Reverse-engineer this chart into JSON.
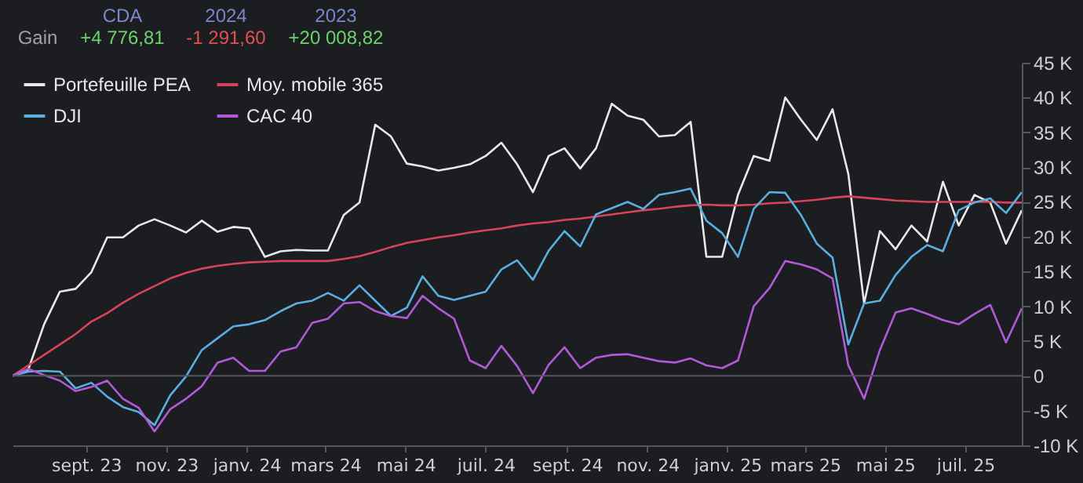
{
  "chart_data": {
    "type": "line",
    "annotations": [
      "Gain",
      "CDA",
      "+4 776,81",
      "2024",
      "-1 291,60",
      "2023",
      "+20 008,82"
    ],
    "x": [
      "2023-07-07",
      "2023-07-19",
      "2023-07-31",
      "2023-08-12",
      "2023-08-24",
      "2023-09-05",
      "2023-09-17",
      "2023-09-29",
      "2023-10-11",
      "2023-10-23",
      "2023-11-04",
      "2023-11-16",
      "2023-11-28",
      "2023-12-10",
      "2023-12-22",
      "2024-01-03",
      "2024-01-15",
      "2024-01-27",
      "2024-02-08",
      "2024-02-20",
      "2024-03-03",
      "2024-03-15",
      "2024-03-27",
      "2024-04-08",
      "2024-04-20",
      "2024-05-02",
      "2024-05-14",
      "2024-05-26",
      "2024-06-07",
      "2024-06-19",
      "2024-07-01",
      "2024-07-13",
      "2024-07-25",
      "2024-08-06",
      "2024-08-18",
      "2024-08-30",
      "2024-09-11",
      "2024-09-23",
      "2024-10-05",
      "2024-10-17",
      "2024-10-29",
      "2024-11-10",
      "2024-11-22",
      "2024-12-04",
      "2024-12-16",
      "2024-12-28",
      "2025-01-09",
      "2025-01-21",
      "2025-02-02",
      "2025-02-14",
      "2025-02-26",
      "2025-03-10",
      "2025-03-22",
      "2025-04-03",
      "2025-04-15",
      "2025-04-27",
      "2025-05-09",
      "2025-05-21",
      "2025-06-02",
      "2025-06-14",
      "2025-06-26",
      "2025-07-08",
      "2025-07-20",
      "2025-08-01",
      "2025-08-13"
    ],
    "series": [
      {
        "name": "Portefeuille PEA",
        "color": "#e8e8e8",
        "values": [
          0,
          0.9,
          7.4,
          12.1,
          12.5,
          14.9,
          19.9,
          19.9,
          21.6,
          22.5,
          21.6,
          20.6,
          22.3,
          20.7,
          21.4,
          21.2,
          17.1,
          17.9,
          18.1,
          18.0,
          18.0,
          23.1,
          24.9,
          36.1,
          34.4,
          30.5,
          30.1,
          29.5,
          29.9,
          30.4,
          31.6,
          33.5,
          30.4,
          26.4,
          31.6,
          32.7,
          29.8,
          32.7,
          39.1,
          37.4,
          36.8,
          34.4,
          34.6,
          36.5,
          17.1,
          17.1,
          26.0,
          31.6,
          30.9,
          40.0,
          36.8,
          33.9,
          38.3,
          29.0,
          10.4,
          20.8,
          18.2,
          21.6,
          19.3,
          27.9,
          21.6,
          26.0,
          24.9,
          19.0,
          23.8
        ]
      },
      {
        "name": "Moy. mobile 365",
        "color": "#d9435a",
        "values": [
          0,
          1.5,
          3.0,
          4.5,
          6.0,
          7.8,
          9.0,
          10.5,
          11.8,
          12.9,
          14.0,
          14.8,
          15.4,
          15.8,
          16.1,
          16.3,
          16.4,
          16.5,
          16.5,
          16.5,
          16.5,
          16.8,
          17.2,
          17.8,
          18.5,
          19.1,
          19.5,
          19.9,
          20.2,
          20.6,
          20.9,
          21.2,
          21.6,
          21.9,
          22.1,
          22.4,
          22.6,
          22.9,
          23.2,
          23.5,
          23.8,
          24.0,
          24.3,
          24.5,
          24.6,
          24.5,
          24.5,
          24.6,
          24.8,
          24.9,
          25.1,
          25.3,
          25.6,
          25.8,
          25.6,
          25.4,
          25.2,
          25.1,
          25.0,
          25.0,
          25.0,
          25.0,
          25.0,
          24.9,
          24.9
        ]
      },
      {
        "name": "DJI",
        "color": "#5aaee0",
        "values": [
          0,
          0.6,
          0.7,
          0.6,
          -1.8,
          -1.0,
          -3.0,
          -4.5,
          -5.2,
          -7.1,
          -2.8,
          -0.1,
          3.7,
          5.4,
          7.1,
          7.4,
          8.0,
          9.3,
          10.4,
          10.8,
          11.9,
          10.8,
          13.0,
          10.8,
          8.6,
          9.8,
          14.3,
          11.5,
          10.9,
          11.5,
          12.1,
          15.3,
          16.6,
          13.8,
          18.0,
          20.8,
          18.6,
          23.2,
          24.1,
          25.0,
          24.0,
          26.0,
          26.4,
          26.9,
          22.3,
          20.5,
          17.1,
          24.0,
          26.4,
          26.3,
          23.1,
          19.0,
          17.0,
          4.5,
          10.4,
          10.8,
          14.5,
          17.1,
          18.8,
          17.9,
          23.8,
          24.9,
          25.5,
          23.4,
          26.4
        ]
      },
      {
        "name": "CAC 40",
        "color": "#b05ad8",
        "values": [
          0,
          1.0,
          0.1,
          -0.7,
          -2.2,
          -1.6,
          -0.7,
          -3.3,
          -4.6,
          -8.0,
          -4.8,
          -3.3,
          -1.5,
          1.9,
          2.6,
          0.7,
          0.7,
          3.5,
          4.1,
          7.6,
          8.2,
          10.4,
          10.6,
          9.3,
          8.6,
          8.3,
          11.5,
          9.7,
          8.2,
          2.2,
          1.1,
          4.3,
          1.4,
          -2.5,
          1.6,
          4.1,
          1.1,
          2.6,
          3.0,
          3.1,
          2.6,
          2.1,
          1.9,
          2.5,
          1.5,
          1.1,
          2.2,
          10.0,
          12.6,
          16.5,
          16.0,
          15.3,
          14.0,
          1.5,
          -3.3,
          3.7,
          9.1,
          9.7,
          8.9,
          8.0,
          7.4,
          8.9,
          10.2,
          4.8,
          9.7
        ]
      }
    ],
    "xlim": [
      "2023-07-07",
      "2025-08-13"
    ],
    "xticks": [
      {
        "value": "2023-09-01",
        "label": "sept. 23"
      },
      {
        "value": "2023-11-01",
        "label": "nov. 23"
      },
      {
        "value": "2024-01-01",
        "label": "janv. 24"
      },
      {
        "value": "2024-03-01",
        "label": "mars 24"
      },
      {
        "value": "2024-05-01",
        "label": "mai 24"
      },
      {
        "value": "2024-07-01",
        "label": "juil. 24"
      },
      {
        "value": "2024-09-01",
        "label": "sept. 24"
      },
      {
        "value": "2024-11-01",
        "label": "nov. 24"
      },
      {
        "value": "2025-01-01",
        "label": "janv. 25"
      },
      {
        "value": "2025-03-01",
        "label": "mars 25"
      },
      {
        "value": "2025-05-01",
        "label": "mai 25"
      },
      {
        "value": "2025-07-01",
        "label": "juil. 25"
      }
    ],
    "ylim": [
      -10,
      45
    ],
    "yticks": [
      {
        "value": -10,
        "label": "-10 K"
      },
      {
        "value": -5,
        "label": "-5 K"
      },
      0,
      {
        "value": 5,
        "label": "5 K"
      },
      {
        "value": 10,
        "label": "10 K"
      },
      {
        "value": 15,
        "label": "15 K"
      },
      {
        "value": 20,
        "label": "20 K"
      },
      {
        "value": 25,
        "label": "25 K"
      },
      {
        "value": 30,
        "label": "30 K"
      },
      {
        "value": 35,
        "label": "35 K"
      },
      {
        "value": 40,
        "label": "40 K"
      },
      {
        "value": 45,
        "label": "45 K"
      }
    ],
    "ref_lines": [
      {
        "axis": "y",
        "value": 0,
        "color": "#55565b"
      }
    ],
    "legend": "top left",
    "grid": false,
    "line_style": "solid",
    "marker": "none"
  }
}
